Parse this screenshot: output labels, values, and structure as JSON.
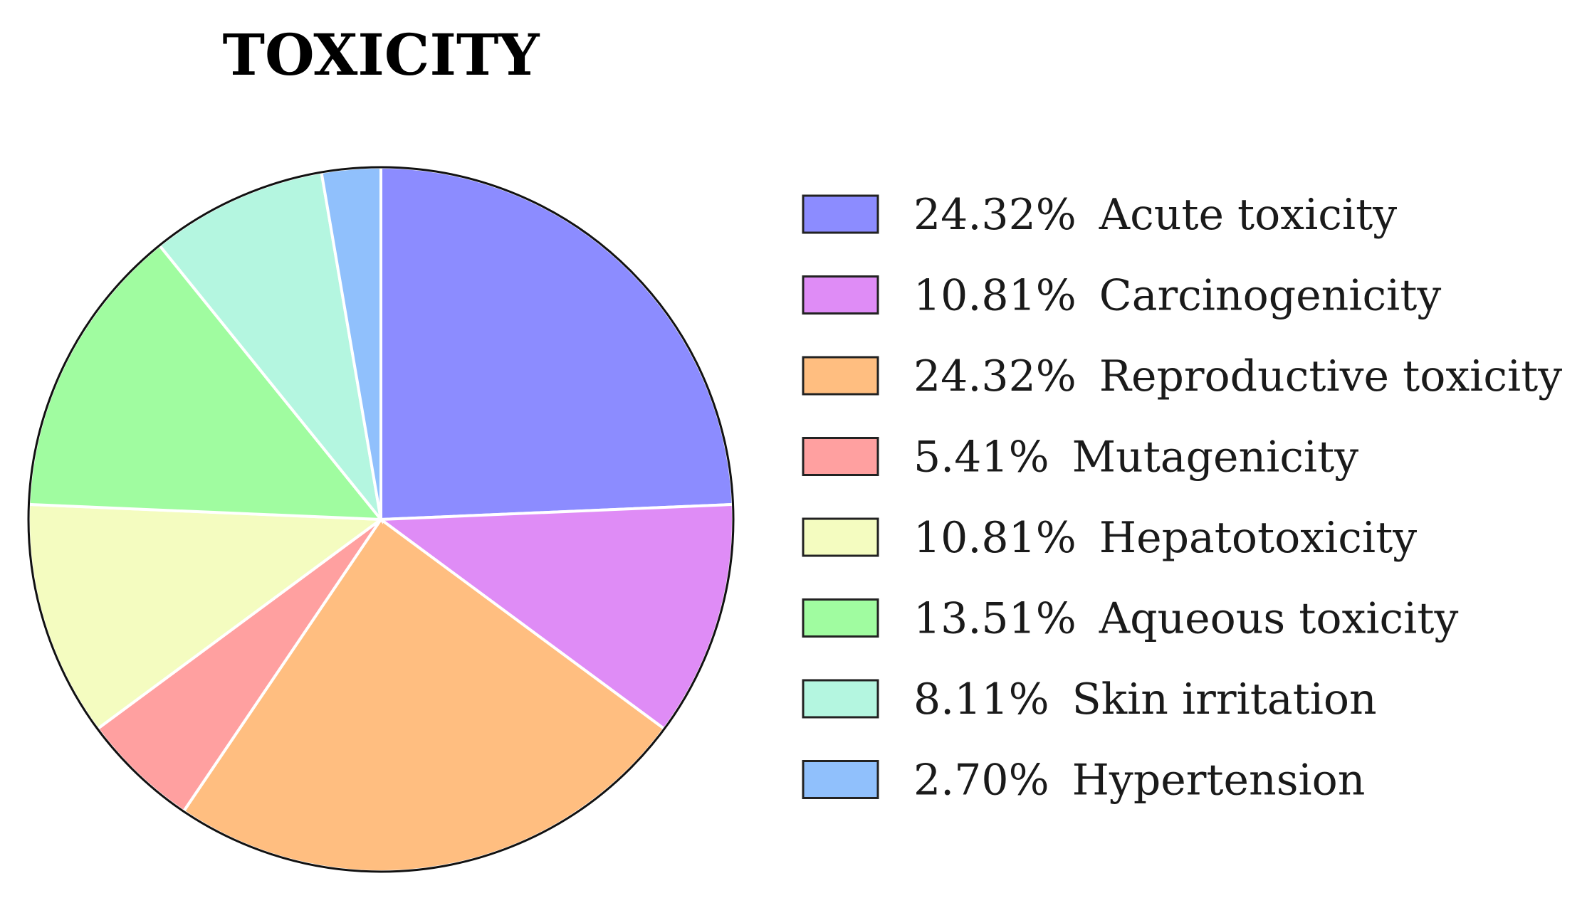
{
  "chart_data": {
    "type": "pie",
    "title": "TOXICITY",
    "slices": [
      {
        "label": "Acute toxicity",
        "value": 24.32,
        "value_label": "24.32%",
        "color": "#8c8cff"
      },
      {
        "label": "Carcinogenicity",
        "value": 10.81,
        "value_label": "10.81%",
        "color": "#df8cf6"
      },
      {
        "label": "Reproductive toxicity",
        "value": 24.32,
        "value_label": "24.32%",
        "color": "#ffbe80"
      },
      {
        "label": "Mutagenicity",
        "value": 5.41,
        "value_label": "5.41%",
        "color": "#ffa0a0"
      },
      {
        "label": "Hepatotoxicity",
        "value": 10.81,
        "value_label": "10.81%",
        "color": "#f4fcc0"
      },
      {
        "label": "Aqueous toxicity",
        "value": 13.51,
        "value_label": "13.51%",
        "color": "#a0fca0"
      },
      {
        "label": "Skin irritation",
        "value": 8.11,
        "value_label": "8.11%",
        "color": "#b4f6e0"
      },
      {
        "label": "Hypertension",
        "value": 2.7,
        "value_label": "2.70%",
        "color": "#90c0fc"
      }
    ],
    "start_angle_deg": 0,
    "direction": "clockwise",
    "legend_position": "right"
  }
}
